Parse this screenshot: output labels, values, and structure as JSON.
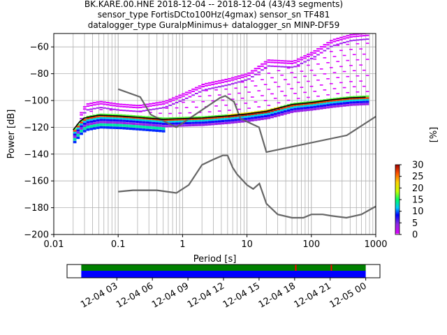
{
  "title_lines": [
    "BK.KARE.00.HNE   2018-12-04 -- 2018-12-04  (43/43 segments)",
    "sensor_type FortisDCto100Hz(4gmax) sensor_sn TF481",
    "datalogger_type GuralpMinimus+ datalogger_sn MINP-DF59"
  ],
  "chart_data": [
    {
      "type": "heatmap",
      "xlabel": "Period [s]",
      "ylabel": "Power [dB]",
      "x_scale": "log",
      "xlim": [
        0.01,
        1000
      ],
      "ylim": [
        -200,
        -50
      ],
      "grid": true,
      "xticks": [
        {
          "v": 0.01,
          "label": "0.01"
        },
        {
          "v": 0.1,
          "label": "0.1"
        },
        {
          "v": 1,
          "label": "1"
        },
        {
          "v": 10,
          "label": "10"
        },
        {
          "v": 100,
          "label": "100"
        },
        {
          "v": 1000,
          "label": "1000"
        }
      ],
      "yticks": [
        {
          "v": -60,
          "label": "−60"
        },
        {
          "v": -80,
          "label": "−80"
        },
        {
          "v": -100,
          "label": "−100"
        },
        {
          "v": -120,
          "label": "−120"
        },
        {
          "v": -140,
          "label": "−140"
        },
        {
          "v": -160,
          "label": "−160"
        },
        {
          "v": -180,
          "label": "−180"
        },
        {
          "v": -200,
          "label": "−200"
        }
      ],
      "nlnm": {
        "x": [
          0.1,
          0.17,
          0.4,
          0.8,
          1.25,
          2,
          3,
          4.2,
          5,
          6,
          7,
          10,
          12.5,
          15.6,
          20,
          30,
          50,
          75,
          100,
          150,
          200,
          350,
          600,
          1000
        ],
        "y": [
          -168,
          -167,
          -167,
          -169,
          -163,
          -148,
          -144,
          -141,
          -141,
          -150,
          -155,
          -163,
          -166,
          -162,
          -177,
          -185,
          -187.5,
          -187.5,
          -185,
          -185,
          -186,
          -187.5,
          -185,
          -179
        ]
      },
      "nhnm": {
        "x": [
          0.1,
          0.22,
          0.32,
          0.8,
          3.8,
          4.6,
          6.3,
          7.9,
          15.4,
          20,
          354.8,
          1000
        ],
        "y": [
          -91.5,
          -97.4,
          -110.5,
          -120,
          -98,
          -96.5,
          -101,
          -113.5,
          -120,
          -138.5,
          -126,
          -112
        ]
      },
      "mean": {
        "x": [
          0.02,
          0.025,
          0.03,
          0.05,
          0.1,
          0.2,
          0.5,
          1,
          2,
          5,
          10,
          20,
          50,
          100,
          200,
          400,
          700
        ],
        "y": [
          -122,
          -116,
          -113,
          -111,
          -111.5,
          -112.5,
          -114,
          -113.5,
          -113,
          -111.5,
          -110,
          -108,
          -103,
          -101.5,
          -99.5,
          -98,
          -97.5
        ]
      },
      "colorbar": {
        "label": "[%]",
        "min": 0,
        "max": 30,
        "ticks": [
          {
            "v": 0,
            "label": "0"
          },
          {
            "v": 5,
            "label": "5"
          },
          {
            "v": 10,
            "label": "10"
          },
          {
            "v": 15,
            "label": "15"
          },
          {
            "v": 20,
            "label": "20"
          },
          {
            "v": 25,
            "label": "25"
          },
          {
            "v": 30,
            "label": "30"
          }
        ]
      }
    },
    {
      "type": "bar",
      "description_kind": "data availability timeline",
      "xticks": [
        {
          "h": 3,
          "label": "12-04 03"
        },
        {
          "h": 6,
          "label": "12-04 06"
        },
        {
          "h": 9,
          "label": "12-04 09"
        },
        {
          "h": 12,
          "label": "12-04 12"
        },
        {
          "h": 15,
          "label": "12-04 15"
        },
        {
          "h": 18,
          "label": "12-04 18"
        },
        {
          "h": 21,
          "label": "12-04 21"
        },
        {
          "h": 24,
          "label": "12-05 00"
        }
      ],
      "xlim_hours": [
        -1.2,
        25.2
      ],
      "coverage_hours": [
        0,
        24
      ],
      "red_marks_hours": [
        18.1,
        21.1
      ],
      "colors": {
        "top": "#008000",
        "bottom": "#0000ff",
        "mark": "#ff0000"
      }
    }
  ]
}
